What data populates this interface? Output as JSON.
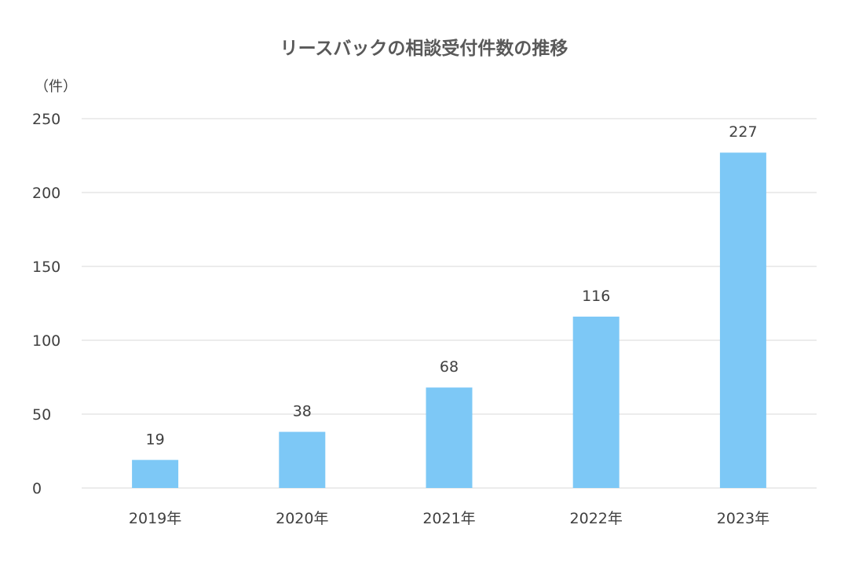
{
  "chart_data": {
    "type": "bar",
    "title": "リースバックの相談受付件数の推移",
    "unit_label": "（件）",
    "categories": [
      "2019年",
      "2020年",
      "2021年",
      "2022年",
      "2023年"
    ],
    "values": [
      19,
      38,
      68,
      116,
      227
    ],
    "data_labels": [
      "19",
      "38",
      "68",
      "116",
      "227"
    ],
    "ylim": [
      0,
      250
    ],
    "yticks": [
      0,
      50,
      100,
      150,
      200,
      250
    ],
    "ytick_labels": [
      "0",
      "50",
      "100",
      "150",
      "200",
      "250"
    ],
    "xlabel": "",
    "ylabel": "",
    "grid": true,
    "legend": "none",
    "bar_color": "#7DC8F6",
    "grid_color": "#D9D9D9"
  }
}
